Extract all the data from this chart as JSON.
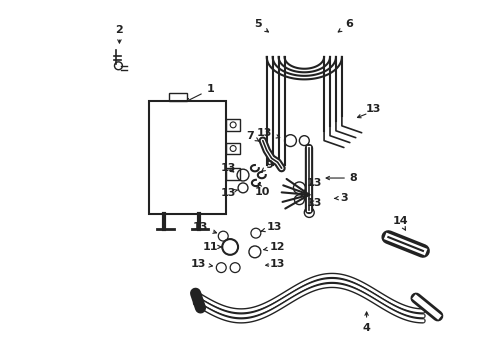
{
  "bg_color": "#ffffff",
  "line_color": "#222222",
  "fig_width": 4.89,
  "fig_height": 3.6,
  "dpi": 100,
  "annotation_fontsize": 8.0,
  "annotation_fontweight": "bold"
}
